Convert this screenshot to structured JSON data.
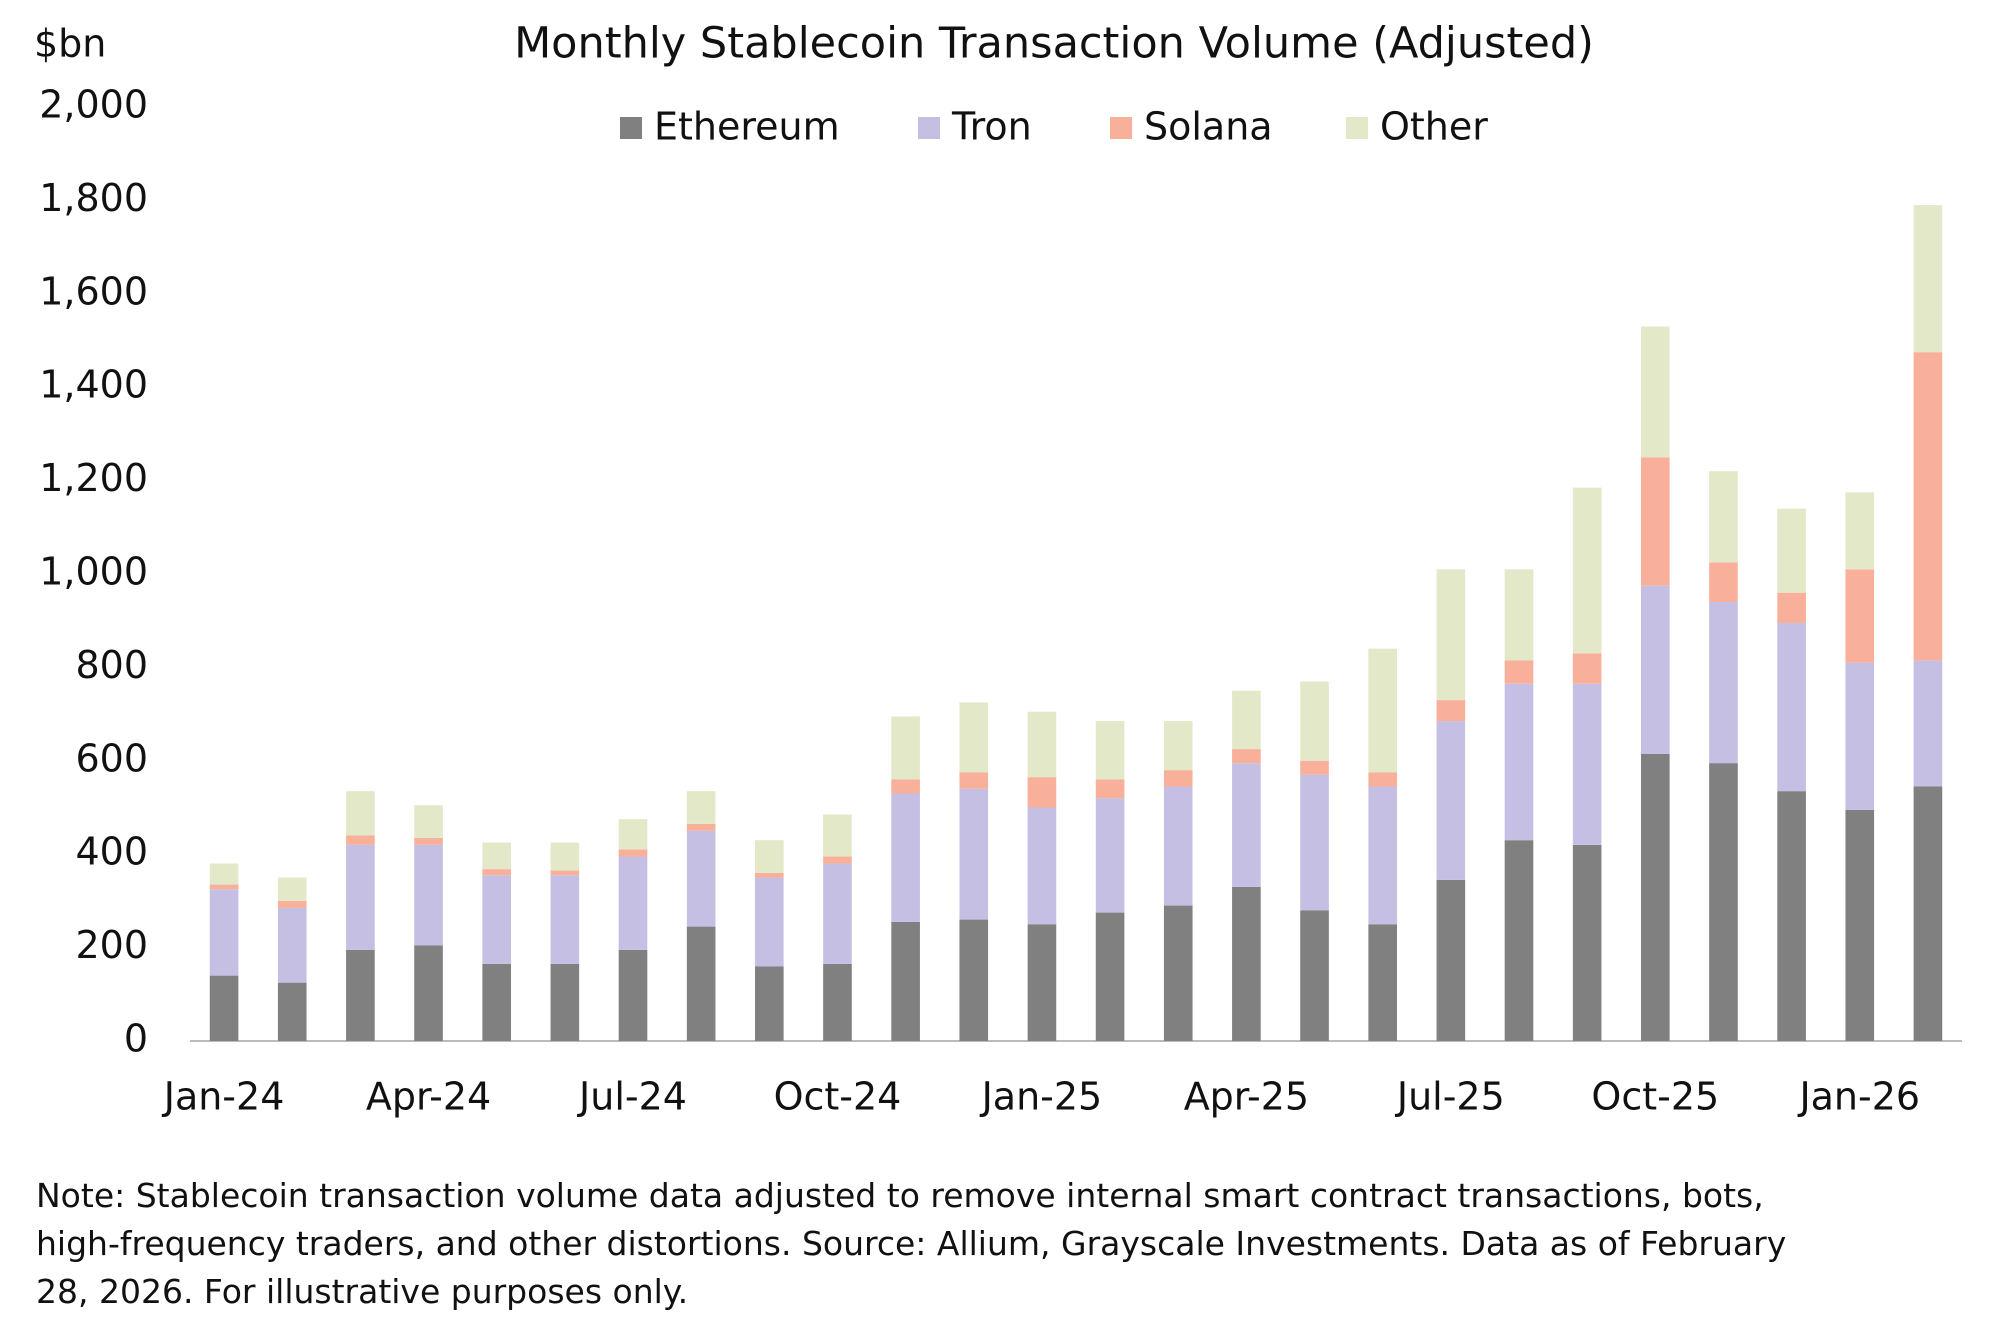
{
  "chart_data": {
    "type": "bar",
    "stacked": true,
    "title": "Monthly Stablecoin Transaction Volume (Adjusted)",
    "y_label": "$bn",
    "categories": [
      "Jan-24",
      null,
      null,
      "Apr-24",
      null,
      null,
      "Jul-24",
      null,
      null,
      "Oct-24",
      null,
      null,
      "Jan-25",
      null,
      null,
      "Apr-25",
      null,
      null,
      "Jul-25",
      null,
      null,
      "Oct-25",
      null,
      null,
      "Jan-26",
      null
    ],
    "series": [
      {
        "name": "Ethereum",
        "color": "#808080",
        "values": [
          140,
          125,
          195,
          205,
          165,
          165,
          195,
          245,
          160,
          165,
          255,
          260,
          250,
          275,
          290,
          330,
          280,
          250,
          345,
          430,
          420,
          615,
          595,
          535,
          495,
          545
        ]
      },
      {
        "name": "Tron",
        "color": "#c5bfe3",
        "values": [
          185,
          160,
          225,
          215,
          190,
          190,
          200,
          205,
          190,
          215,
          275,
          280,
          250,
          245,
          255,
          265,
          290,
          295,
          340,
          335,
          345,
          360,
          345,
          360,
          315,
          270
        ]
      },
      {
        "name": "Solana",
        "color": "#f9b09a",
        "values": [
          10,
          15,
          20,
          15,
          13,
          10,
          15,
          15,
          10,
          15,
          30,
          35,
          65,
          40,
          35,
          30,
          30,
          30,
          45,
          50,
          65,
          275,
          85,
          65,
          200,
          660
        ]
      },
      {
        "name": "Other",
        "color": "#e3e8c8",
        "values": [
          45,
          50,
          95,
          70,
          57,
          60,
          65,
          70,
          70,
          90,
          135,
          150,
          140,
          125,
          105,
          125,
          170,
          265,
          280,
          195,
          355,
          280,
          195,
          180,
          165,
          315
        ]
      }
    ],
    "ylim": [
      0,
      2000
    ],
    "yticks": [
      0,
      {
        "value": 200,
        "label": "200"
      },
      {
        "value": 400,
        "label": "400"
      },
      {
        "value": 600,
        "label": "600"
      },
      {
        "value": 800,
        "label": "800"
      },
      {
        "value": 1000,
        "label": "1,000"
      },
      {
        "value": 1200,
        "label": "1,200"
      },
      {
        "value": 1400,
        "label": "1,400"
      },
      {
        "value": 1600,
        "label": "1,600"
      },
      {
        "value": 1800,
        "label": "1,800"
      },
      {
        "value": 2000,
        "label": "2,000"
      }
    ],
    "grid": false,
    "legend": "top",
    "note": [
      "Note: Stablecoin transaction volume data adjusted to remove internal smart contract transactions, bots,",
      "high-frequency traders, and other distortions. Source: Allium, Grayscale Investments. Data as of February",
      "28, 2026. For illustrative purposes only."
    ]
  }
}
